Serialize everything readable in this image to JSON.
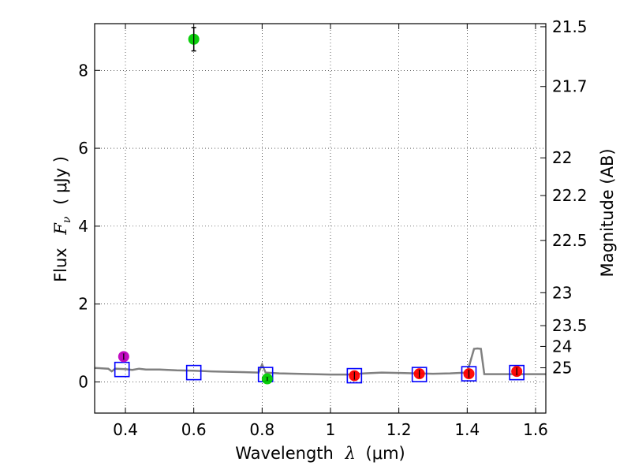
{
  "chart_data": {
    "type": "scatter",
    "xlabel_prefix": "Wavelength",
    "xlabel_symbol": "λ",
    "xlabel_unit": "(μm)",
    "ylabel_prefix": "Flux",
    "ylabel_symbol": "F",
    "ylabel_subscript": "ν",
    "ylabel_unit": "( μJy )",
    "y2label": "Magnitude (AB)",
    "xlim": [
      0.31,
      1.63
    ],
    "ylim": [
      -0.8,
      9.2
    ],
    "x_ticks": [
      0.4,
      0.6,
      0.8,
      1.0,
      1.2,
      1.4,
      1.6
    ],
    "x_tick_labels": [
      "0.4",
      "0.6",
      "0.8",
      "1",
      "1.2",
      "1.4",
      "1.6"
    ],
    "y_ticks": [
      0,
      2,
      4,
      6,
      8
    ],
    "y_tick_labels": [
      "0",
      "2",
      "4",
      "6",
      "8"
    ],
    "magnitude_ticks": [
      21.5,
      21.7,
      22,
      22.2,
      22.5,
      23,
      23.5,
      24,
      25
    ],
    "magnitude_tick_labels": [
      "21.5",
      "21.7",
      "22",
      "22.2",
      "22.5",
      "23",
      "23.5",
      "24",
      "25"
    ],
    "grid": true,
    "colors": {
      "model": "#808080",
      "model_points": "#0000ff",
      "detections": "#ff0000",
      "optical": "#00cc00",
      "uv": "#bf00bf"
    },
    "model_spectrum": {
      "x": [
        0.31,
        0.35,
        0.36,
        0.37,
        0.4,
        0.42,
        0.44,
        0.46,
        0.5,
        0.55,
        0.6,
        0.65,
        0.7,
        0.75,
        0.79,
        0.8,
        0.81,
        0.85,
        0.9,
        0.95,
        1.0,
        1.05,
        1.1,
        1.15,
        1.2,
        1.25,
        1.3,
        1.35,
        1.4,
        1.42,
        1.43,
        1.44,
        1.45,
        1.5,
        1.55,
        1.6,
        1.63
      ],
      "y": [
        0.36,
        0.34,
        0.27,
        0.34,
        0.33,
        0.31,
        0.34,
        0.32,
        0.32,
        0.3,
        0.29,
        0.27,
        0.26,
        0.25,
        0.24,
        0.45,
        0.24,
        0.22,
        0.21,
        0.2,
        0.19,
        0.19,
        0.22,
        0.24,
        0.23,
        0.22,
        0.21,
        0.22,
        0.24,
        0.85,
        0.86,
        0.85,
        0.2,
        0.2,
        0.2,
        0.2,
        0.2
      ]
    },
    "model_points": {
      "x": [
        0.39,
        0.6,
        0.81,
        1.07,
        1.26,
        1.405,
        1.545
      ],
      "y": [
        0.32,
        0.24,
        0.19,
        0.16,
        0.19,
        0.21,
        0.24
      ]
    },
    "detections": {
      "x": [
        1.07,
        1.26,
        1.405,
        1.545
      ],
      "y": [
        0.16,
        0.21,
        0.21,
        0.27
      ],
      "err": [
        0.1,
        0.1,
        0.1,
        0.1
      ]
    },
    "optical": {
      "x": [
        0.6,
        0.815
      ],
      "y": [
        8.8,
        0.08
      ],
      "err": [
        0.3,
        0.05
      ]
    },
    "uv": {
      "x": [
        0.395
      ],
      "y": [
        0.65
      ],
      "err": [
        0.08
      ]
    }
  }
}
